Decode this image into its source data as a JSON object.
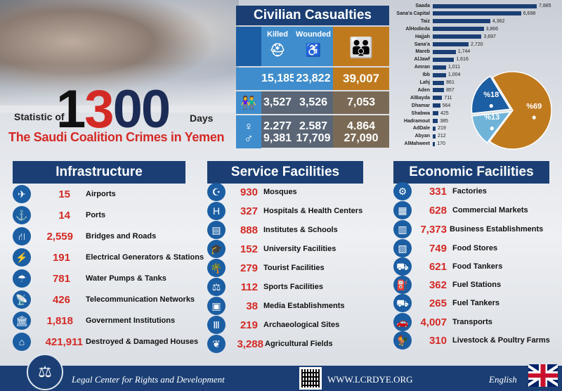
{
  "header": {
    "statistic_of": "Statistic of",
    "big_number": {
      "d1": "1",
      "d2": "3",
      "d3": "0",
      "d4": "0"
    },
    "days": "Days",
    "campaign_title": "The Saudi Coalition Crimes in Yemen"
  },
  "casualties": {
    "title": "Civilian Casualties",
    "headers": {
      "killed": "Killed",
      "wounded": "Wounded"
    },
    "rows": [
      {
        "group_icon": "people-icon",
        "killed": "15,185",
        "wounded": "23,822",
        "total": "39,007"
      },
      {
        "group_icon": "children-icon",
        "killed": "3,527",
        "wounded": "3,526",
        "total": "7,053"
      },
      {
        "group_icon": "woman-icon",
        "killed": "2,277",
        "wounded": "2,587",
        "total": "4,864"
      },
      {
        "group_icon": "man-icon",
        "killed": "9,381",
        "wounded": "17,709",
        "total": "27,090"
      }
    ]
  },
  "chart_data": [
    {
      "type": "bar",
      "title": "",
      "xlabel": "",
      "ylabel": "",
      "categories": [
        "Saada",
        "Sana'a Capital",
        "Taiz",
        "AlHodieda",
        "Hajjah",
        "Sana'a",
        "Mareb",
        "AlJawf",
        "Amran",
        "Ibb",
        "Lahj",
        "Aden",
        "AlBayda",
        "Dhamar",
        "Shabwa",
        "Hadramout",
        "AdDale",
        "Abyan",
        "AlMahweet"
      ],
      "values": [
        7885,
        6698,
        4362,
        3866,
        3697,
        2720,
        1744,
        1616,
        1011,
        1004,
        861,
        857,
        711,
        564,
        425,
        385,
        219,
        212,
        170
      ],
      "value_labels": [
        "7,885",
        "6,698",
        "4,362",
        "3,866",
        "3,697",
        "2,720",
        "1,744",
        "1,616",
        "1,011",
        "1,004",
        "861",
        "857",
        "711",
        "564",
        "425",
        "385",
        "219",
        "212",
        "170"
      ],
      "orientation": "horizontal"
    },
    {
      "type": "pie",
      "title": "",
      "slices": [
        {
          "label": "%69",
          "value": 69,
          "color": "#c07a1e",
          "icon": "man-icon"
        },
        {
          "label": "%13",
          "value": 13,
          "color": "#6fb3d9",
          "icon": "woman-icon"
        },
        {
          "label": "%18",
          "value": 18,
          "color": "#1b5ea3",
          "icon": "children-icon"
        }
      ]
    }
  ],
  "infrastructure": {
    "title": "Infrastructure",
    "items": [
      {
        "icon": "airplane-icon",
        "glyph": "✈",
        "value": "15",
        "label": "Airports"
      },
      {
        "icon": "anchor-icon",
        "glyph": "⚓",
        "value": "14",
        "label": "Ports"
      },
      {
        "icon": "road-icon",
        "glyph": "⛙",
        "value": "2,559",
        "label": "Bridges and Roads"
      },
      {
        "icon": "power-tower-icon",
        "glyph": "⚡",
        "value": "191",
        "label": "Electrical Generators & Stations"
      },
      {
        "icon": "water-pump-icon",
        "glyph": "☂",
        "value": "781",
        "label": "Water Pumps & Tanks"
      },
      {
        "icon": "satellite-dish-icon",
        "glyph": "📡",
        "value": "426",
        "label": "Telecommunication Networks"
      },
      {
        "icon": "government-building-icon",
        "glyph": "🏛",
        "value": "1,818",
        "label": "Government Institutions"
      },
      {
        "icon": "house-icon",
        "glyph": "⌂",
        "value": "421,911",
        "label": "Destroyed & Damaged Houses"
      }
    ]
  },
  "services": {
    "title": "Service Facilities",
    "items": [
      {
        "icon": "crescent-icon",
        "glyph": "☪",
        "value": "930",
        "label": "Mosques"
      },
      {
        "icon": "hospital-icon",
        "glyph": "H",
        "value": "327",
        "label": "Hospitals & Health Centers"
      },
      {
        "icon": "book-icon",
        "glyph": "▤",
        "value": "888",
        "label": "Institutes & Schools"
      },
      {
        "icon": "graduation-cap-icon",
        "glyph": "🎓",
        "value": "152",
        "label": "University Facilities"
      },
      {
        "icon": "palm-tree-icon",
        "glyph": "🌴",
        "value": "279",
        "label": "Tourist Facilities"
      },
      {
        "icon": "dumbbell-icon",
        "glyph": "⚖",
        "value": "112",
        "label": "Sports Facilities"
      },
      {
        "icon": "tv-icon",
        "glyph": "▣",
        "value": "38",
        "label": "Media Establishments"
      },
      {
        "icon": "pillars-icon",
        "glyph": "Ⅲ",
        "value": "219",
        "label": "Archaeological Sites"
      },
      {
        "icon": "wheat-icon",
        "glyph": "❦",
        "value": "3,288",
        "label": "Agricultural Fields"
      }
    ]
  },
  "economic": {
    "title": "Economic Facilities",
    "items": [
      {
        "icon": "factory-icon",
        "glyph": "⚙",
        "value": "331",
        "label": "Factories"
      },
      {
        "icon": "market-icon",
        "glyph": "▦",
        "value": "628",
        "label": "Commercial Markets"
      },
      {
        "icon": "shop-icon",
        "glyph": "▥",
        "value": "7,373",
        "label": "Business Establishments"
      },
      {
        "icon": "store-icon",
        "glyph": "▧",
        "value": "749",
        "label": "Food Stores"
      },
      {
        "icon": "tanker-truck-icon",
        "glyph": "⛟",
        "value": "621",
        "label": "Food Tankers"
      },
      {
        "icon": "fuel-pump-icon",
        "glyph": "⛽",
        "value": "362",
        "label": "Fuel Stations"
      },
      {
        "icon": "fuel-truck-icon",
        "glyph": "⛟",
        "value": "265",
        "label": "Fuel Tankers"
      },
      {
        "icon": "car-icon",
        "glyph": "🚗",
        "value": "4,007",
        "label": "Transports"
      },
      {
        "icon": "rooster-icon",
        "glyph": "🐓",
        "value": "310",
        "label": "Livestock & Poultry Farms"
      }
    ]
  },
  "footer": {
    "organization": "Legal Center for Rights and Development",
    "website": "WWW.LCRDYE.ORG",
    "language": "English"
  },
  "colors": {
    "navy": "#1b3f74",
    "light_blue": "#3f8dcc",
    "orange": "#c07a1e",
    "red": "#d42a25"
  }
}
